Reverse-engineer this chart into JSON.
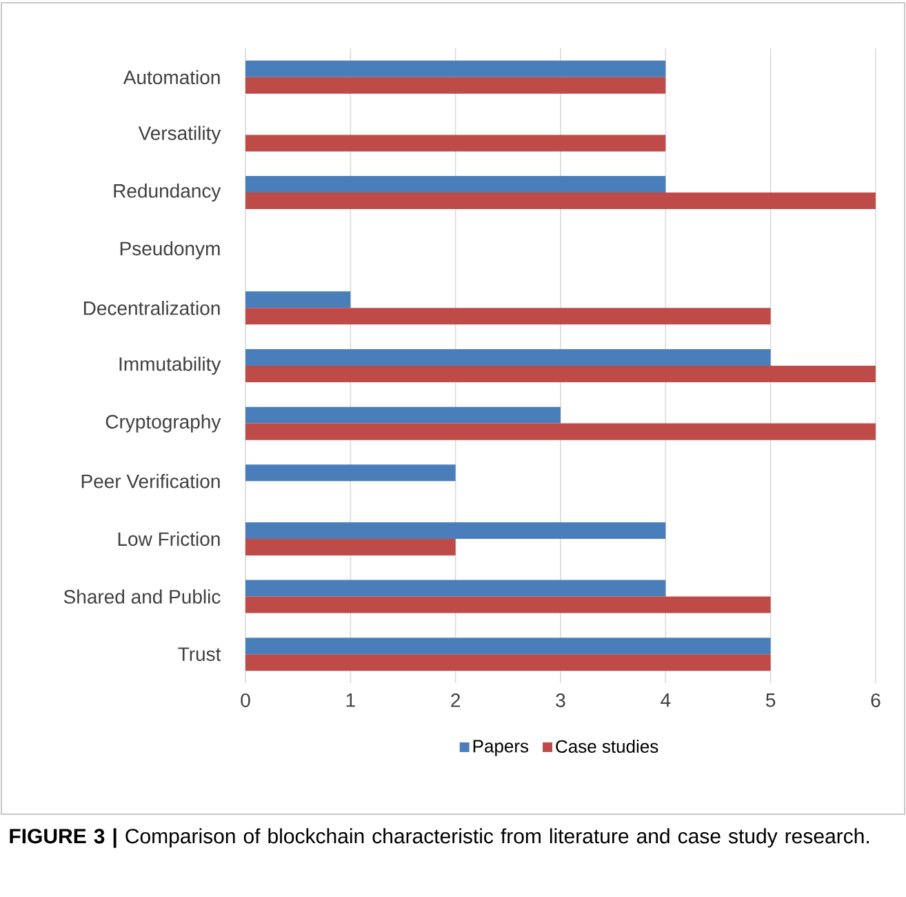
{
  "chart_data": {
    "type": "bar",
    "orientation": "horizontal",
    "categories": [
      "Automation",
      "Versatility",
      "Redundancy",
      "Pseudonym",
      "Decentralization",
      "Immutability",
      "Cryptography",
      "Peer Verification",
      "Low Friction",
      "Shared and Public",
      "Trust"
    ],
    "series": [
      {
        "name": "Papers",
        "color": "#4a7ebb",
        "values": [
          4,
          0,
          4,
          0,
          1,
          5,
          3,
          2,
          4,
          4,
          5
        ]
      },
      {
        "name": "Case studies",
        "color": "#be4b48",
        "values": [
          4,
          4,
          6,
          0,
          5,
          6,
          6,
          0,
          2,
          5,
          5
        ]
      }
    ],
    "xlim": [
      0,
      6
    ],
    "xticks": [
      0,
      1,
      2,
      3,
      4,
      5,
      6
    ],
    "grid": "x",
    "legend": "bottom",
    "annotations": [
      "**FIGURE 3 |** Comparison of blockchain characteristic from literature and case study research."
    ]
  }
}
